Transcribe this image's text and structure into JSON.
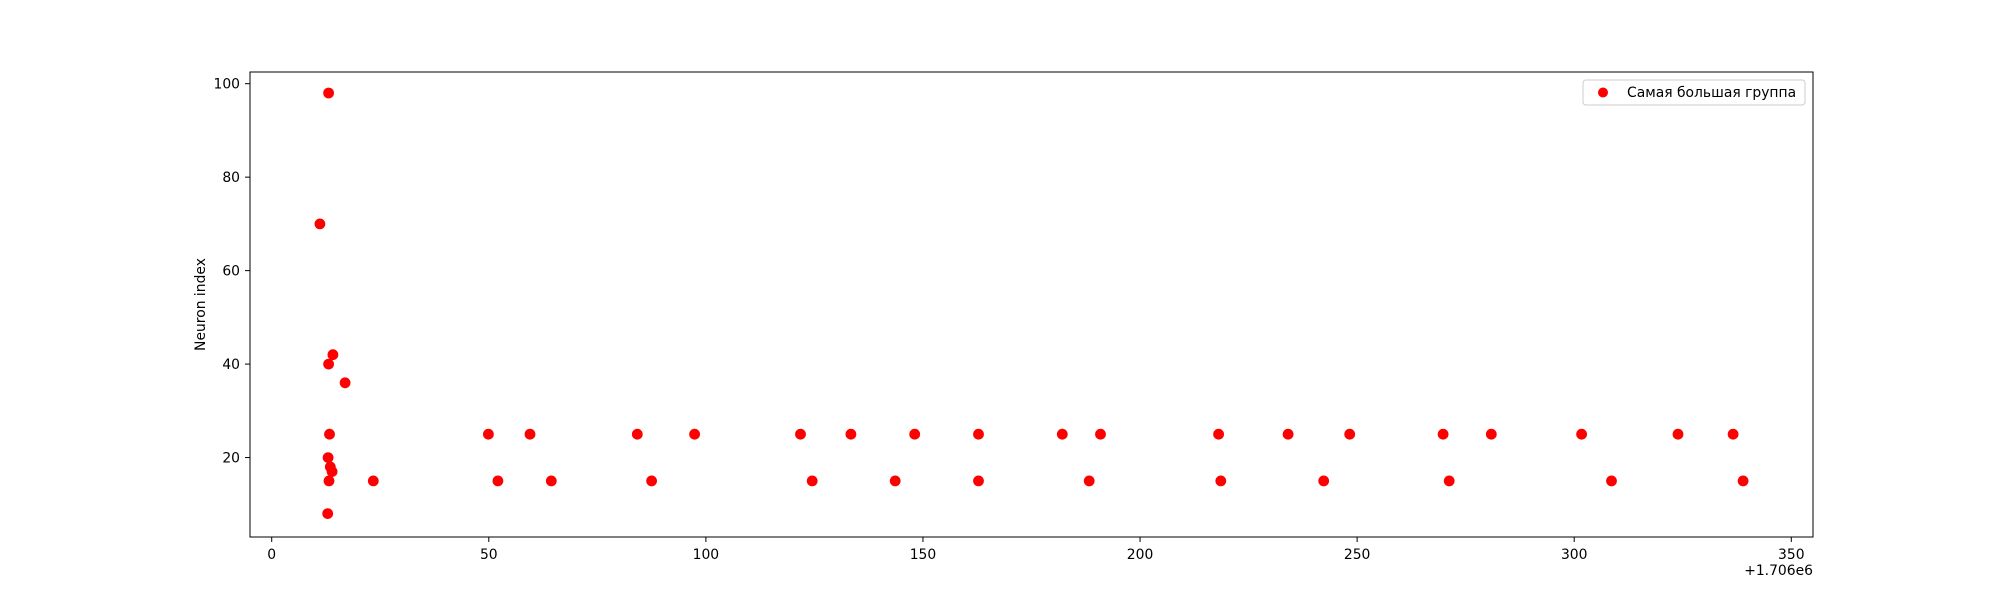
{
  "chart_data": {
    "type": "scatter",
    "title": "",
    "xlabel": "",
    "ylabel": "Neuron index",
    "x_offset_label": "+1.706e6",
    "xlim": [
      -5,
      355
    ],
    "ylim": [
      3,
      102.5
    ],
    "xticks": [
      0,
      50,
      100,
      150,
      200,
      250,
      300,
      350
    ],
    "yticks": [
      20,
      40,
      60,
      80,
      100
    ],
    "grid": false,
    "legend": {
      "position": "top-right",
      "entries": [
        "Самая большая группа"
      ]
    },
    "colors": {
      "marker": "#ff0000",
      "axes": "#000000"
    },
    "series": [
      {
        "name": "Самая большая группа",
        "points": [
          [
            1706011.1,
            70
          ],
          [
            1706013.1,
            98
          ],
          [
            1706013.1,
            40
          ],
          [
            1706013.3,
            25
          ],
          [
            1706013.0,
            20
          ],
          [
            1706013.5,
            18
          ],
          [
            1706013.9,
            17
          ],
          [
            1706013.2,
            15
          ],
          [
            1706012.9,
            8
          ],
          [
            1706014.1,
            42
          ],
          [
            1706016.9,
            36
          ],
          [
            1706023.4,
            15
          ],
          [
            1706049.9,
            25
          ],
          [
            1706052.1,
            15
          ],
          [
            1706059.5,
            25
          ],
          [
            1706064.4,
            15
          ],
          [
            1706084.2,
            25
          ],
          [
            1706087.5,
            15
          ],
          [
            1706097.4,
            25
          ],
          [
            1706121.8,
            25
          ],
          [
            1706124.5,
            15
          ],
          [
            1706133.4,
            25
          ],
          [
            1706143.6,
            15
          ],
          [
            1706148.1,
            25
          ],
          [
            1706162.8,
            25
          ],
          [
            1706162.8,
            15
          ],
          [
            1706182.1,
            25
          ],
          [
            1706188.3,
            15
          ],
          [
            1706190.9,
            25
          ],
          [
            1706218.1,
            25
          ],
          [
            1706218.6,
            15
          ],
          [
            1706234.1,
            25
          ],
          [
            1706242.3,
            15
          ],
          [
            1706248.3,
            25
          ],
          [
            1706269.8,
            25
          ],
          [
            1706271.2,
            15
          ],
          [
            1706280.9,
            25
          ],
          [
            1706301.7,
            25
          ],
          [
            1706308.6,
            15
          ],
          [
            1706323.9,
            25
          ],
          [
            1706336.6,
            25
          ],
          [
            1706338.9,
            15
          ]
        ]
      }
    ]
  }
}
